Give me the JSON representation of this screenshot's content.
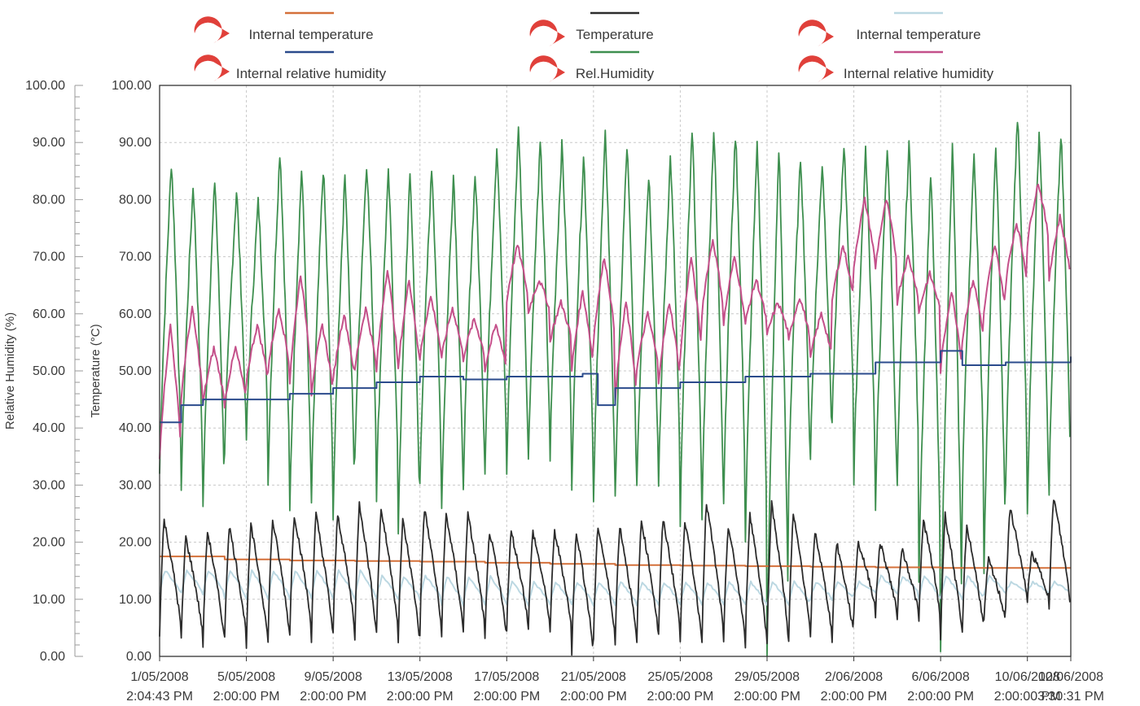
{
  "chart_data": {
    "type": "line",
    "title": "",
    "legend": {
      "placement": "top",
      "entries": [
        {
          "number": "1",
          "label": "Internal temperature",
          "color": "#d4703a"
        },
        {
          "number": "2",
          "label": "Internal relative humidity",
          "color": "#2b4b8c"
        },
        {
          "number": "3",
          "label": "Temperature",
          "color": "#2c2c2c"
        },
        {
          "number": "4",
          "label": "Rel.Humidity",
          "color": "#3e8f4f"
        },
        {
          "number": "5",
          "label": "Internal temperature",
          "color": "#bcd8e2"
        },
        {
          "number": "6",
          "label": "Internal relative humidity",
          "color": "#c4508a"
        }
      ],
      "badge_color": "#e0403a"
    },
    "xlabel": "",
    "x_tick_labels": [
      [
        "1/05/2008",
        "2:04:43 PM"
      ],
      [
        "5/05/2008",
        "2:00:00 PM"
      ],
      [
        "9/05/2008",
        "2:00:00 PM"
      ],
      [
        "13/05/2008",
        "2:00:00 PM"
      ],
      [
        "17/05/2008",
        "2:00:00 PM"
      ],
      [
        "21/05/2008",
        "2:00:00 PM"
      ],
      [
        "25/05/2008",
        "2:00:00 PM"
      ],
      [
        "29/05/2008",
        "2:00:00 PM"
      ],
      [
        "2/06/2008",
        "2:00:00 PM"
      ],
      [
        "6/06/2008",
        "2:00:00 PM"
      ],
      [
        "10/06/2008",
        "2:00:00 PM"
      ],
      [
        "12/06/2008",
        "3:30:31 PM"
      ]
    ],
    "x_tick_days": [
      0,
      4,
      8,
      12,
      16,
      20,
      24,
      28,
      32,
      36,
      40,
      42
    ],
    "xlim_days": [
      0,
      42
    ],
    "y_left": {
      "label": "Relative Humidity (%)",
      "ylim": [
        0,
        100
      ],
      "ticks": [
        "0.00",
        "10.00",
        "20.00",
        "30.00",
        "40.00",
        "50.00",
        "60.00",
        "70.00",
        "80.00",
        "90.00",
        "100.00"
      ]
    },
    "y_right": {
      "label": "Temperature (°C)",
      "ylim": [
        0,
        100
      ],
      "ticks": [
        "0.00",
        "10.00",
        "20.00",
        "30.00",
        "40.00",
        "50.00",
        "60.00",
        "70.00",
        "80.00",
        "90.00",
        "100.00"
      ]
    },
    "grid": true,
    "series": [
      {
        "name": "Internal temperature",
        "legend_index": 0,
        "color": "#d4703a",
        "x_days": [
          0,
          3,
          6,
          9,
          12,
          15,
          18,
          21,
          24,
          27,
          30,
          33,
          36,
          39,
          42
        ],
        "values": [
          17.5,
          17.0,
          16.8,
          16.7,
          16.6,
          16.4,
          16.2,
          16.0,
          15.9,
          15.8,
          15.7,
          15.6,
          15.5,
          15.5,
          15.5
        ]
      },
      {
        "name": "Internal relative humidity",
        "legend_index": 1,
        "color": "#2b4b8c",
        "x_days": [
          0,
          1,
          2,
          4,
          6,
          8,
          10,
          12,
          14,
          16,
          18,
          19.5,
          20.2,
          21,
          24,
          27,
          30,
          32,
          33,
          35,
          36,
          37,
          39,
          42
        ],
        "values": [
          41,
          44,
          45,
          45,
          46,
          47,
          48,
          49,
          48.5,
          49,
          49,
          49.5,
          44,
          47,
          48,
          49,
          49.5,
          49.5,
          51.5,
          51.5,
          53.5,
          51,
          51.5,
          52.5
        ]
      },
      {
        "name": "Temperature",
        "legend_index": 2,
        "color": "#2c2c2c",
        "daily_low": [
          4,
          3,
          2,
          3,
          2,
          3,
          4,
          3,
          4,
          3,
          4,
          2,
          4,
          4,
          4,
          3,
          5,
          5,
          4,
          0,
          3,
          2,
          3,
          4,
          2,
          3,
          2,
          2,
          2,
          3,
          3,
          3,
          8,
          7,
          7,
          6,
          3,
          4,
          6,
          9,
          10,
          8
        ],
        "daily_high": [
          24,
          21,
          22,
          23,
          23,
          24,
          25,
          25,
          25,
          27,
          26,
          24,
          26,
          25,
          25,
          22,
          22,
          22,
          22,
          22,
          23,
          23,
          24,
          24,
          24,
          27,
          23,
          25,
          27,
          25,
          22,
          20,
          20,
          20,
          19,
          24,
          25,
          23,
          17,
          26,
          18,
          28
        ]
      },
      {
        "name": "Rel.Humidity",
        "legend_index": 3,
        "color": "#3e8f4f",
        "daily_high": [
          87,
          83,
          84,
          82,
          80,
          89,
          86,
          86,
          85,
          87,
          85,
          85,
          86,
          85,
          85,
          90,
          93,
          90,
          90,
          88,
          92,
          90,
          85,
          88,
          93,
          93,
          92,
          90,
          90,
          88,
          87,
          89,
          89,
          90,
          90,
          85,
          90,
          88,
          90,
          95,
          93,
          92
        ],
        "daily_low": [
          32,
          30,
          26,
          36,
          38,
          30,
          25,
          27,
          25,
          34,
          28,
          22,
          30,
          26,
          30,
          33,
          32,
          34,
          35,
          30,
          26,
          27,
          30,
          29,
          23,
          24,
          27,
          20,
          0,
          30,
          35,
          41,
          30,
          25,
          30,
          14,
          0,
          28,
          15,
          30,
          25,
          29
        ]
      },
      {
        "name": "Internal temperature",
        "legend_index": 4,
        "color": "#bcd8e2",
        "daily_low": [
          11,
          11,
          11,
          10,
          10,
          10,
          10,
          10,
          10,
          10,
          10,
          10,
          10,
          9,
          9,
          9,
          9,
          9,
          9,
          9,
          9,
          9,
          9,
          9,
          9,
          9,
          9,
          9,
          9,
          9,
          10,
          10,
          11,
          11,
          11,
          10,
          10,
          10,
          11,
          11,
          11,
          11
        ],
        "daily_high": [
          15,
          15,
          15,
          15,
          15,
          15,
          15,
          15,
          15,
          15,
          14,
          14,
          14,
          14,
          14,
          14,
          13,
          13,
          13,
          13,
          13,
          13,
          13,
          13,
          13,
          13,
          13,
          13,
          13,
          13,
          13,
          13,
          13,
          14,
          14,
          14,
          14,
          14,
          14,
          13,
          13,
          13
        ]
      },
      {
        "name": "Internal relative humidity",
        "legend_index": 5,
        "color": "#c4508a",
        "daily_high": [
          58,
          61,
          54,
          54,
          58,
          61,
          67,
          58,
          60,
          61,
          68,
          66,
          63,
          61,
          59,
          58,
          72,
          66,
          62,
          64,
          70,
          62,
          60,
          62,
          70,
          73,
          70,
          66,
          62,
          63,
          60,
          72,
          80,
          80,
          70,
          67,
          64,
          66,
          72,
          76,
          83,
          77
        ],
        "daily_low": [
          35,
          45,
          44,
          44,
          48,
          50,
          48,
          46,
          48,
          50,
          50,
          50,
          52,
          52,
          52,
          50,
          62,
          60,
          55,
          50,
          55,
          45,
          50,
          48,
          52,
          60,
          58,
          58,
          56,
          55,
          52,
          62,
          68,
          68,
          62,
          60,
          50,
          55,
          60,
          65,
          72,
          66
        ]
      }
    ]
  }
}
